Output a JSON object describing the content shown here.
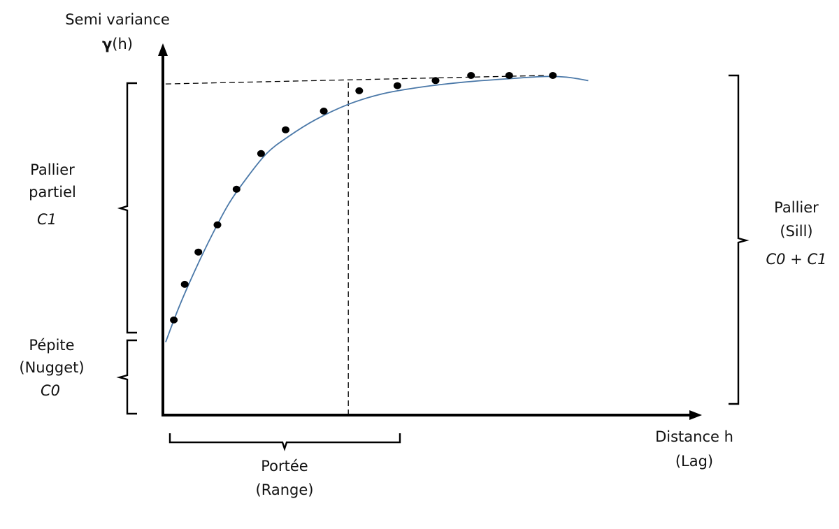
{
  "y_axis": {
    "title": "Semi variance",
    "symbol": "γ",
    "symbol_suffix": "(h)"
  },
  "x_axis": {
    "title_line1": "Distance h",
    "title_line2": "(Lag)"
  },
  "partial_sill": {
    "line1": "Pallier",
    "line2": "partiel",
    "symbol": "C1"
  },
  "nugget": {
    "line1": "Pépite",
    "line2": "(Nugget)",
    "symbol": "C0"
  },
  "sill": {
    "line1": "Pallier",
    "line2": "(Sill)",
    "symbol": "C0 + C1"
  },
  "range": {
    "line1": "Portée",
    "line2": "(Range)"
  },
  "colors": {
    "curve": "#4a78a8",
    "axis": "#000000",
    "points": "#000000",
    "dashed": "#000000"
  },
  "chart_data": {
    "type": "scatter",
    "description_series": "empirical semivariogram points with fitted model curve",
    "nugget": 0.2,
    "sill": 1.0,
    "range": 0.34,
    "xlim": [
      0,
      1
    ],
    "ylim": [
      0,
      1.0
    ],
    "points": {
      "x": [
        0.02,
        0.04,
        0.065,
        0.1,
        0.135,
        0.18,
        0.225,
        0.295,
        0.36,
        0.43,
        0.5,
        0.565,
        0.635,
        0.715
      ],
      "y": [
        0.28,
        0.385,
        0.48,
        0.56,
        0.665,
        0.77,
        0.84,
        0.895,
        0.955,
        0.97,
        0.985,
        1.0,
        1.0,
        1.0
      ]
    },
    "model_curve": {
      "x": [
        0.005,
        0.03,
        0.06,
        0.09,
        0.12,
        0.15,
        0.19,
        0.23,
        0.28,
        0.34,
        0.4,
        0.47,
        0.55,
        0.63,
        0.7,
        0.74,
        0.78
      ],
      "y": [
        0.215,
        0.32,
        0.43,
        0.53,
        0.62,
        0.69,
        0.77,
        0.82,
        0.87,
        0.915,
        0.945,
        0.965,
        0.98,
        0.99,
        0.997,
        0.995,
        0.985
      ]
    },
    "sill_reference_line": {
      "x": [
        0.005,
        0.7
      ],
      "y": [
        0.975,
        1.0
      ]
    },
    "range_marker_x": 0.34
  }
}
